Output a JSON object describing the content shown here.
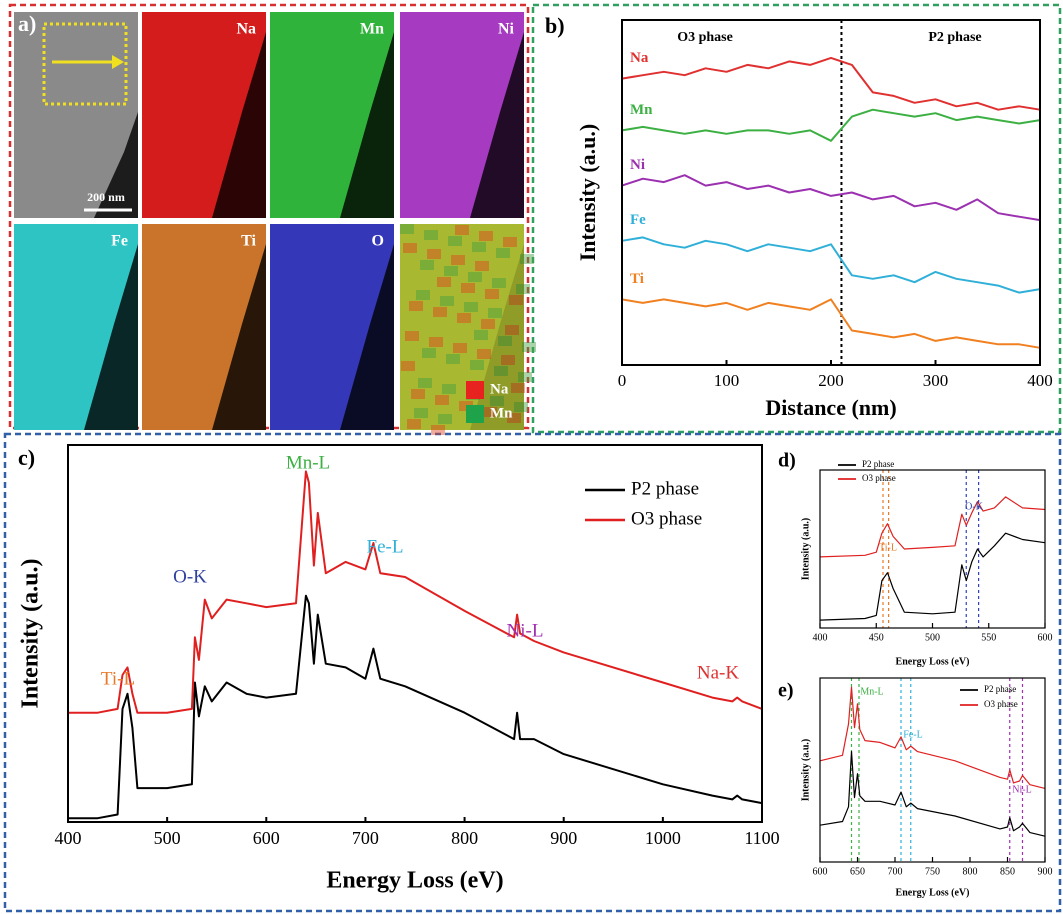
{
  "panel_a": {
    "label": "a)",
    "scale_bar": "200 nm",
    "tiles": [
      {
        "color": "#8a8a8a"
      },
      {
        "name": "Na",
        "color": "#d41c1c"
      },
      {
        "name": "Mn",
        "color": "#2fb33a"
      },
      {
        "name": "Ni",
        "color": "#a63ac0"
      },
      {
        "name": "Fe",
        "color": "#2ec4c4"
      },
      {
        "name": "Ti",
        "color": "#c9742a"
      },
      {
        "name": "O",
        "color": "#3438b8"
      },
      {
        "overlay": true,
        "color": "#a8b830"
      }
    ],
    "legend": [
      {
        "name": "Na",
        "color": "#e8231f"
      },
      {
        "name": "Mn",
        "color": "#1fa34a"
      }
    ]
  },
  "chart_data": [
    {
      "type": "line",
      "panel_label": "b)",
      "xlabel": "Distance (nm)",
      "ylabel": "Intensity (a.u.)",
      "xlim": [
        0,
        400
      ],
      "xticks": [
        0,
        100,
        200,
        300,
        400
      ],
      "ylim": [
        0,
        10
      ],
      "series_labels": "inline",
      "x": [
        0,
        20,
        40,
        60,
        80,
        100,
        120,
        140,
        160,
        180,
        200,
        220,
        240,
        260,
        280,
        300,
        320,
        340,
        360,
        380,
        400
      ],
      "series": [
        {
          "name": "Na",
          "color": "#e03030",
          "values": [
            8.3,
            8.4,
            8.5,
            8.4,
            8.6,
            8.5,
            8.7,
            8.6,
            8.8,
            8.7,
            8.9,
            8.7,
            7.9,
            7.8,
            7.6,
            7.7,
            7.5,
            7.6,
            7.4,
            7.5,
            7.4
          ]
        },
        {
          "name": "Mn",
          "color": "#3cb043",
          "values": [
            6.8,
            6.9,
            6.8,
            6.7,
            6.8,
            6.7,
            6.8,
            6.8,
            6.7,
            6.8,
            6.5,
            7.2,
            7.4,
            7.3,
            7.2,
            7.3,
            7.1,
            7.2,
            7.1,
            7.0,
            7.1
          ]
        },
        {
          "name": "Ni",
          "color": "#9b30b0",
          "values": [
            5.2,
            5.4,
            5.3,
            5.5,
            5.2,
            5.3,
            5.1,
            5.2,
            5.0,
            5.1,
            4.9,
            5.0,
            4.8,
            4.9,
            4.6,
            4.7,
            4.5,
            4.8,
            4.4,
            4.3,
            4.2
          ]
        },
        {
          "name": "Fe",
          "color": "#30b0d8",
          "values": [
            3.6,
            3.7,
            3.5,
            3.4,
            3.6,
            3.5,
            3.3,
            3.5,
            3.4,
            3.3,
            3.5,
            2.6,
            2.5,
            2.6,
            2.4,
            2.7,
            2.5,
            2.4,
            2.3,
            2.1,
            2.2
          ]
        },
        {
          "name": "Ti",
          "color": "#f08020",
          "values": [
            1.9,
            1.8,
            1.9,
            1.8,
            1.7,
            1.8,
            1.6,
            1.8,
            1.7,
            1.6,
            1.9,
            1.0,
            0.9,
            0.8,
            0.9,
            0.7,
            0.8,
            0.7,
            0.6,
            0.6,
            0.5
          ]
        }
      ],
      "annotations": [
        {
          "text": "O3 phase",
          "color": "#000000"
        },
        {
          "text": "P2 phase",
          "color": "#000000"
        }
      ],
      "dashed_lines": [
        {
          "x": 210,
          "color": "#000000"
        }
      ]
    },
    {
      "type": "line",
      "panel_label": "c)",
      "xlabel": "Energy Loss (eV)",
      "ylabel": "Intensity (a.u.)",
      "xlim": [
        400,
        1100
      ],
      "xticks": [
        400,
        500,
        600,
        700,
        800,
        900,
        1000,
        1100
      ],
      "ylim": [
        0,
        10
      ],
      "legend": "upper right",
      "x": [
        400,
        430,
        450,
        455,
        460,
        465,
        470,
        500,
        525,
        528,
        532,
        538,
        545,
        560,
        580,
        600,
        630,
        640,
        643,
        648,
        652,
        660,
        680,
        700,
        708,
        715,
        740,
        800,
        850,
        853,
        856,
        870,
        900,
        1000,
        1050,
        1070,
        1075,
        1080,
        1100
      ],
      "series": [
        {
          "name": "P2 phase",
          "color": "#000000",
          "values": [
            0.1,
            0.1,
            0.2,
            3.0,
            3.4,
            2.5,
            0.9,
            0.9,
            1.0,
            3.7,
            2.8,
            3.6,
            3.2,
            3.7,
            3.4,
            3.3,
            3.4,
            6.0,
            5.8,
            4.2,
            5.5,
            4.2,
            4.1,
            3.8,
            4.6,
            3.8,
            3.6,
            2.9,
            2.2,
            2.9,
            2.2,
            2.2,
            1.8,
            1.0,
            0.7,
            0.6,
            0.7,
            0.6,
            0.5
          ]
        },
        {
          "name": "O3 phase",
          "color": "#e02020",
          "values": [
            2.9,
            2.9,
            3.0,
            3.9,
            4.1,
            3.4,
            2.9,
            2.9,
            3.0,
            4.9,
            4.3,
            5.9,
            5.4,
            5.9,
            5.8,
            5.7,
            5.8,
            9.3,
            9.0,
            6.8,
            8.2,
            6.6,
            6.9,
            6.7,
            7.4,
            6.6,
            6.5,
            5.6,
            4.9,
            5.5,
            5.0,
            4.8,
            4.5,
            3.7,
            3.3,
            3.2,
            3.3,
            3.2,
            3.0
          ]
        }
      ],
      "annotations": [
        {
          "text": "Ti-L",
          "color": "#e8792a"
        },
        {
          "text": "O-K",
          "color": "#3040a0"
        },
        {
          "text": "Mn-L",
          "color": "#3cb043"
        },
        {
          "text": "Fe-L",
          "color": "#30b0d8"
        },
        {
          "text": "Ni-L",
          "color": "#a030b0"
        },
        {
          "text": "Na-K",
          "color": "#e03030"
        }
      ]
    },
    {
      "type": "line",
      "panel_label": "d)",
      "xlabel": "Energy Loss (eV)",
      "ylabel": "Intensity (a.u.)",
      "xlim": [
        400,
        600
      ],
      "xticks": [
        400,
        450,
        500,
        550,
        600
      ],
      "ylim": [
        0,
        10
      ],
      "legend": "upper left",
      "x": [
        400,
        440,
        450,
        455,
        460,
        465,
        475,
        500,
        520,
        526,
        530,
        535,
        540,
        545,
        555,
        565,
        580,
        600
      ],
      "series": [
        {
          "name": "P2 phase",
          "color": "#000000",
          "values": [
            0.5,
            0.6,
            0.8,
            3.0,
            3.5,
            2.5,
            1.0,
            0.9,
            1.0,
            4.0,
            3.0,
            4.2,
            5.0,
            4.5,
            5.2,
            6.0,
            5.6,
            5.4
          ]
        },
        {
          "name": "O3 phase",
          "color": "#e02020",
          "values": [
            4.5,
            4.6,
            4.8,
            6.0,
            6.6,
            5.8,
            5.0,
            5.1,
            5.2,
            7.2,
            6.5,
            7.3,
            8.0,
            7.4,
            7.6,
            8.3,
            7.6,
            7.5
          ]
        }
      ],
      "annotations": [
        {
          "text": "Ti-L",
          "color": "#e8792a"
        },
        {
          "text": "O-K",
          "color": "#3040a0"
        }
      ],
      "dashed_lines": [
        {
          "x": 456,
          "color": "#e8792a"
        },
        {
          "x": 461,
          "color": "#e8792a"
        },
        {
          "x": 530,
          "color": "#3040c0"
        },
        {
          "x": 541,
          "color": "#3040c0"
        }
      ]
    },
    {
      "type": "line",
      "panel_label": "e)",
      "xlabel": "Energy Loss (eV)",
      "ylabel": "Intensity (a.u.)",
      "xlim": [
        600,
        900
      ],
      "xticks": [
        600,
        650,
        700,
        750,
        800,
        850,
        900
      ],
      "ylim": [
        0,
        10
      ],
      "legend": "upper right",
      "x": [
        600,
        630,
        638,
        642,
        646,
        650,
        653,
        660,
        680,
        700,
        708,
        715,
        721,
        730,
        780,
        840,
        850,
        853,
        858,
        866,
        870,
        880,
        900
      ],
      "series": [
        {
          "name": "P2 phase",
          "color": "#000000",
          "values": [
            2.0,
            2.2,
            3.0,
            6.0,
            3.5,
            4.8,
            3.6,
            3.3,
            3.3,
            3.1,
            3.8,
            3.0,
            3.2,
            2.9,
            2.5,
            1.8,
            1.9,
            2.4,
            1.7,
            1.9,
            2.1,
            1.6,
            1.4
          ]
        },
        {
          "name": "O3 phase",
          "color": "#e02020",
          "values": [
            5.5,
            5.8,
            7.5,
            9.5,
            7.3,
            8.6,
            7.2,
            6.6,
            6.5,
            6.2,
            6.8,
            6.1,
            6.3,
            6.0,
            5.5,
            4.6,
            4.5,
            5.0,
            4.3,
            4.4,
            4.7,
            4.2,
            4.0
          ]
        }
      ],
      "annotations": [
        {
          "text": "Mn-L",
          "color": "#3cb043"
        },
        {
          "text": "Fe-L",
          "color": "#30b0d8"
        },
        {
          "text": "Ni-L",
          "color": "#a030b0"
        }
      ],
      "dashed_lines": [
        {
          "x": 642,
          "color": "#3cb043"
        },
        {
          "x": 652,
          "color": "#3cb043"
        },
        {
          "x": 708,
          "color": "#30b0d8"
        },
        {
          "x": 721,
          "color": "#30b0d8"
        },
        {
          "x": 853,
          "color": "#a030b0"
        },
        {
          "x": 870,
          "color": "#a030b0"
        }
      ]
    }
  ]
}
